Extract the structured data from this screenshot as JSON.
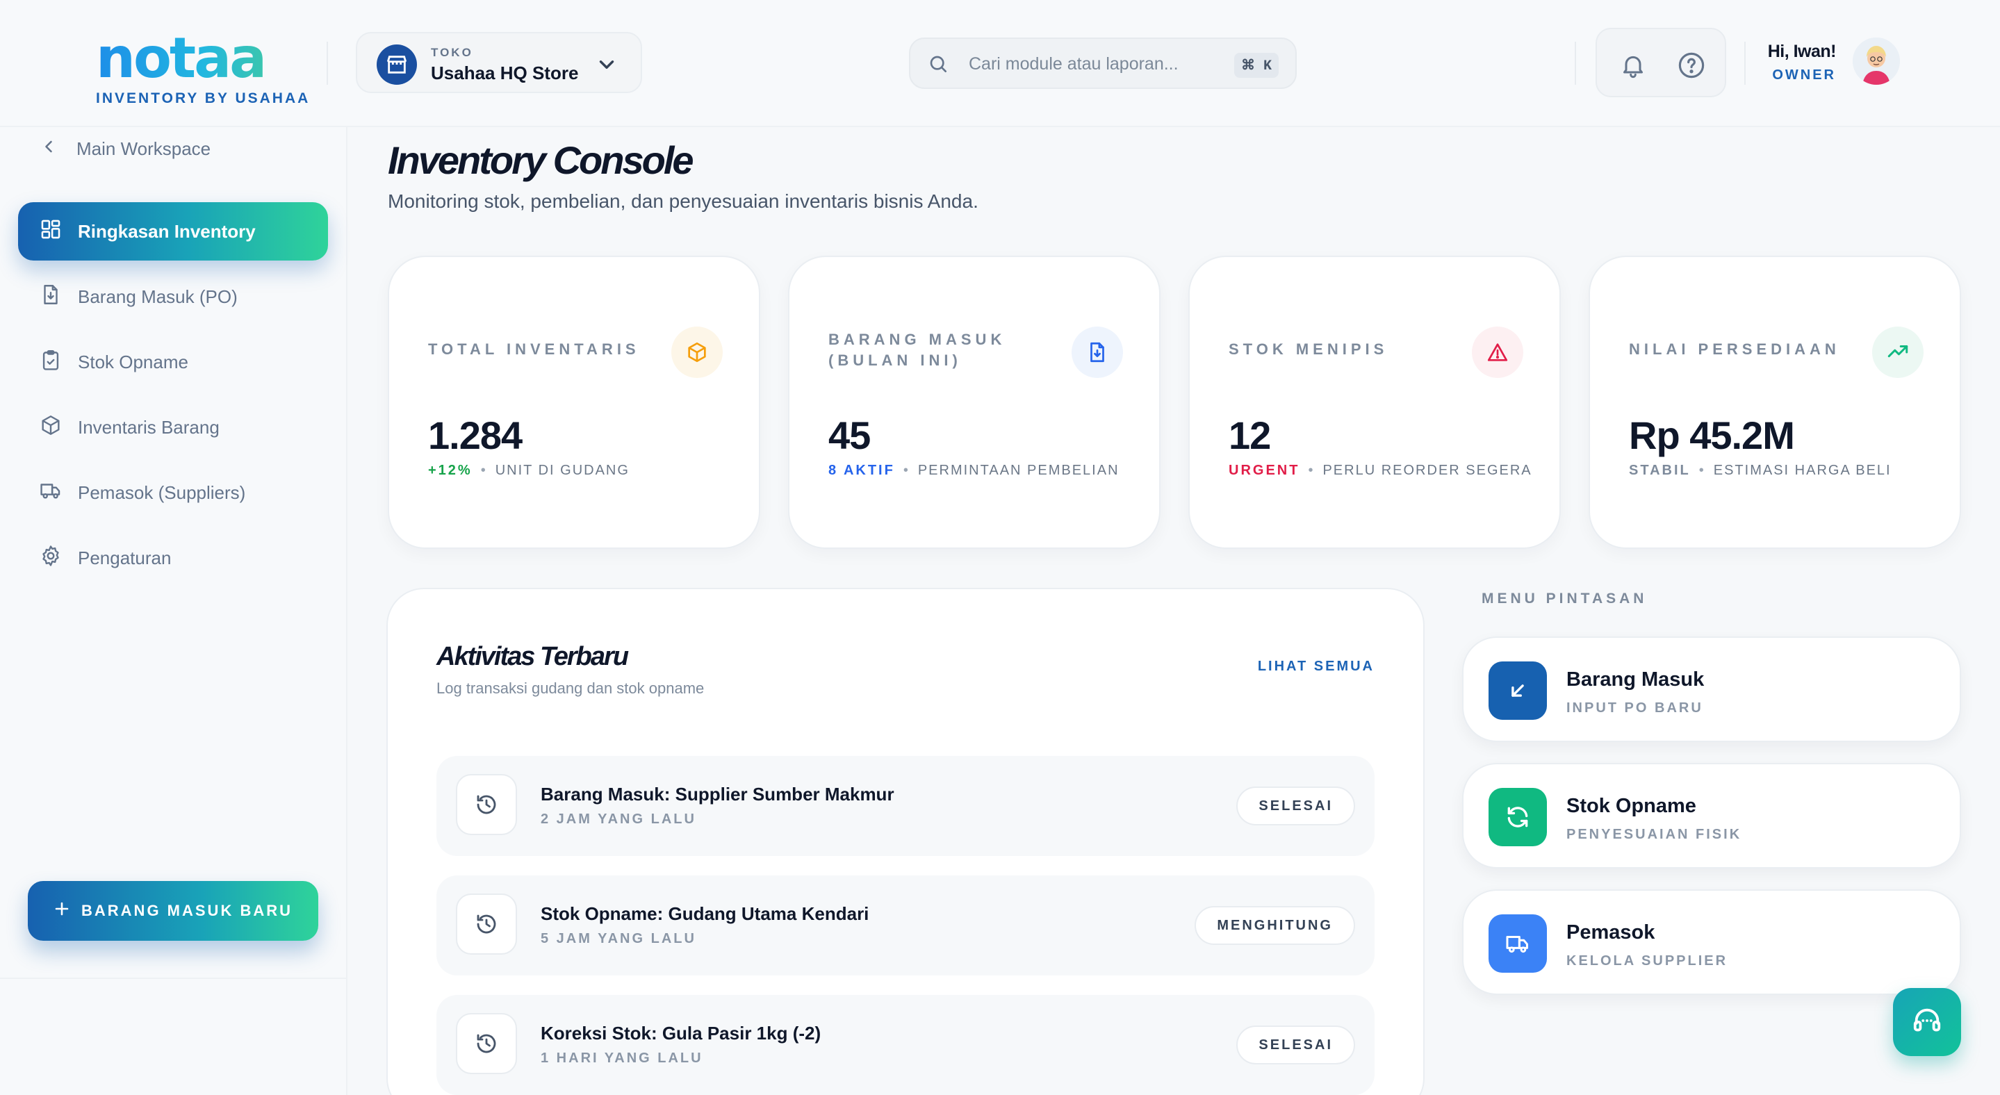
{
  "header": {
    "logo_text": "notaa",
    "logo_subtitle": "INVENTORY BY USAHAA",
    "store_caption": "TOKO",
    "store_name": "Usahaa HQ Store",
    "search_placeholder": "Cari module atau laporan...",
    "search_shortcut": "⌘ K",
    "greeting": "Hi, Iwan!",
    "role": "OWNER"
  },
  "sidebar": {
    "back_label": "Main Workspace",
    "items": [
      {
        "label": "Ringkasan Inventory",
        "icon": "dashboard-icon",
        "active": true
      },
      {
        "label": "Barang Masuk (PO)",
        "icon": "file-download-icon"
      },
      {
        "label": "Stok Opname",
        "icon": "clipboard-check-icon"
      },
      {
        "label": "Inventaris Barang",
        "icon": "box-icon"
      },
      {
        "label": "Pemasok (Suppliers)",
        "icon": "truck-icon"
      },
      {
        "label": "Pengaturan",
        "icon": "gear-icon"
      }
    ],
    "cta_label": "BARANG MASUK BARU"
  },
  "main": {
    "title": "Inventory Console",
    "subtitle": "Monitoring stok, pembelian, dan penyesuaian inventaris bisnis Anda."
  },
  "stats": [
    {
      "label": "TOTAL INVENTARIS",
      "value": "1.284",
      "highlight": "+12%",
      "caption": "UNIT DI GUDANG",
      "highlight_color": "#16a34a",
      "icon": "box-icon",
      "icon_color": "#f59e0b"
    },
    {
      "label": "BARANG MASUK (BULAN INI)",
      "value": "45",
      "highlight": "8 AKTIF",
      "caption": "PERMINTAAN PEMBELIAN",
      "highlight_color": "#2563eb",
      "icon": "file-download-icon",
      "icon_color": "#2563eb"
    },
    {
      "label": "STOK MENIPIS",
      "value": "12",
      "highlight": "URGENT",
      "caption": "PERLU REORDER SEGERA",
      "highlight_color": "#e11d48",
      "icon": "alert-triangle-icon",
      "icon_color": "#e11d48"
    },
    {
      "label": "NILAI PERSEDIAAN",
      "value": "Rp 45.2M",
      "highlight": "STABIL",
      "caption": "ESTIMASI HARGA BELI",
      "highlight_color": "#7d8a9b",
      "icon": "trending-up-icon",
      "icon_color": "#10b981"
    }
  ],
  "activity": {
    "title": "Aktivitas Terbaru",
    "subtitle": "Log transaksi gudang dan stok opname",
    "view_all": "LIHAT SEMUA",
    "rows": [
      {
        "title": "Barang Masuk: Supplier Sumber Makmur",
        "time": "2 JAM YANG LALU",
        "status": "SELESAI"
      },
      {
        "title": "Stok Opname: Gudang Utama Kendari",
        "time": "5 JAM YANG LALU",
        "status": "MENGHITUNG"
      },
      {
        "title": "Koreksi Stok: Gula Pasir 1kg (-2)",
        "time": "1 HARI YANG LALU",
        "status": "SELESAI"
      }
    ]
  },
  "quick_menu": {
    "title": "MENU PINTASAN",
    "items": [
      {
        "title": "Barang Masuk",
        "subtitle": "INPUT PO BARU",
        "color": "#1761b0",
        "icon": "arrow-down-left-icon"
      },
      {
        "title": "Stok Opname",
        "subtitle": "PENYESUAIAN FISIK",
        "color": "#10b981",
        "icon": "refresh-icon"
      },
      {
        "title": "Pemasok",
        "subtitle": "KELOLA SUPPLIER",
        "color": "#3b82f6",
        "icon": "truck-icon"
      }
    ]
  },
  "colors": {
    "brand_blue": "#1c63b5",
    "brand_green": "#2fd39a"
  }
}
